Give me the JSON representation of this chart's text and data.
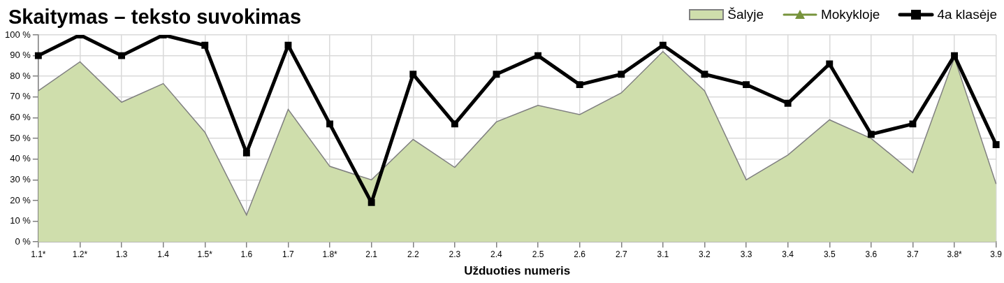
{
  "chart_data": {
    "type": "line",
    "title": "Skaitymas – teksto suvokimas",
    "xlabel": "Užduoties numeris",
    "categories": [
      "1.1*",
      "1.2*",
      "1.3",
      "1.4",
      "1.5*",
      "1.6",
      "1.7",
      "1.8*",
      "2.1",
      "2.2",
      "2.3",
      "2.4",
      "2.5",
      "2.6",
      "2.7",
      "3.1",
      "3.2",
      "3.3",
      "3.4",
      "3.5",
      "3.6",
      "3.7",
      "3.8*",
      "3.9"
    ],
    "series": [
      {
        "name": "Šalyje",
        "type": "area",
        "color": "#cfdeac",
        "values": [
          73,
          87,
          67.5,
          76.5,
          53,
          13,
          64,
          36.5,
          30,
          49.5,
          36,
          58,
          66,
          61.5,
          72,
          92,
          73,
          30,
          42,
          59,
          50,
          33.5,
          89,
          28
        ]
      },
      {
        "name": "Mokykloje",
        "type": "line",
        "color": "#77933c",
        "marker": "triangle",
        "values": [
          null,
          null,
          null,
          null,
          null,
          null,
          null,
          null,
          null,
          null,
          null,
          null,
          null,
          null,
          null,
          null,
          null,
          null,
          null,
          null,
          null,
          null,
          null,
          null
        ]
      },
      {
        "name": "4a klasėje",
        "type": "line",
        "color": "#000000",
        "marker": "square",
        "values": [
          90,
          100,
          90,
          100,
          95,
          43,
          95,
          57,
          19,
          81,
          57,
          81,
          90,
          76,
          81,
          95,
          81,
          76,
          67,
          86,
          52,
          57,
          90,
          47
        ]
      }
    ],
    "ylim": [
      0,
      100
    ],
    "yticks": [
      {
        "value": 0,
        "label": "0 %"
      },
      {
        "value": 10,
        "label": "10 %"
      },
      {
        "value": 20,
        "label": "20 %"
      },
      {
        "value": 30,
        "label": "30 %"
      },
      {
        "value": 40,
        "label": "40 %"
      },
      {
        "value": 50,
        "label": "50 %"
      },
      {
        "value": 60,
        "label": "60 %"
      },
      {
        "value": 70,
        "label": "70 %"
      },
      {
        "value": 80,
        "label": "80 %"
      },
      {
        "value": 90,
        "label": "90 %"
      },
      {
        "value": 100,
        "label": "100 %"
      }
    ],
    "grid": true,
    "legend": "top right"
  }
}
